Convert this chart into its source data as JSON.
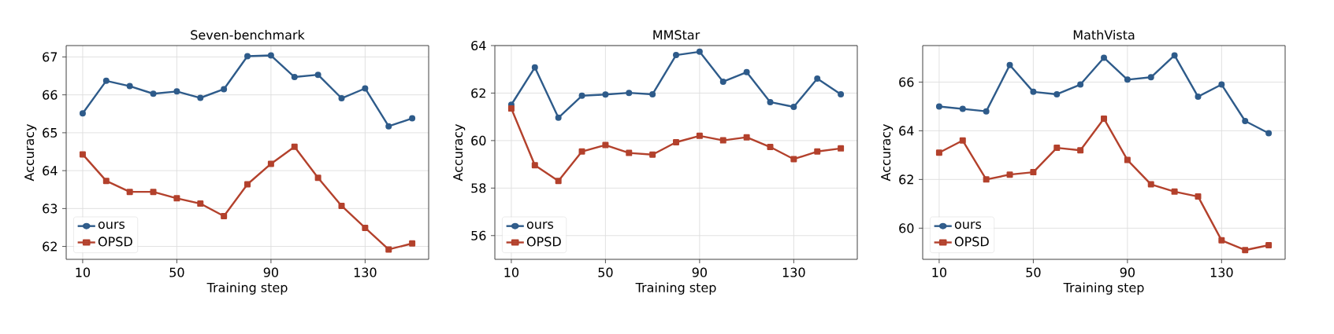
{
  "chart_data": [
    {
      "type": "line",
      "title": "Seven-benchmark",
      "xlabel": "Training step",
      "ylabel": "Accuracy",
      "x": [
        10,
        20,
        30,
        40,
        50,
        60,
        70,
        80,
        90,
        100,
        110,
        120,
        130,
        140,
        150
      ],
      "xlim": [
        3,
        157
      ],
      "ylim": [
        61.66,
        67.3
      ],
      "xticks": [
        10,
        50,
        90,
        130
      ],
      "yticks": [
        62,
        63,
        64,
        65,
        66,
        67
      ],
      "grid": true,
      "legend": "bottom left",
      "series": [
        {
          "name": "ours",
          "color": "#2e5b8a",
          "marker": "circle",
          "values": [
            65.51,
            66.37,
            66.23,
            66.03,
            66.09,
            65.92,
            66.15,
            67.02,
            67.04,
            66.47,
            66.53,
            65.91,
            66.17,
            65.17,
            65.38
          ]
        },
        {
          "name": "OPSD",
          "color": "#b3412c",
          "marker": "square",
          "values": [
            64.43,
            63.73,
            63.44,
            63.44,
            63.27,
            63.13,
            62.8,
            63.64,
            64.18,
            64.63,
            63.81,
            63.07,
            62.49,
            61.92,
            62.08
          ]
        }
      ]
    },
    {
      "type": "line",
      "title": "MMStar",
      "xlabel": "Training step",
      "ylabel": "Accuracy",
      "x": [
        10,
        20,
        30,
        40,
        50,
        60,
        70,
        80,
        90,
        100,
        110,
        120,
        130,
        140,
        150
      ],
      "xlim": [
        3,
        157
      ],
      "ylim": [
        55,
        64
      ],
      "xticks": [
        10,
        50,
        90,
        130
      ],
      "yticks": [
        56,
        58,
        60,
        62,
        64
      ],
      "grid": true,
      "legend": "bottom left",
      "series": [
        {
          "name": "ours",
          "color": "#2e5b8a",
          "marker": "circle",
          "values": [
            61.51,
            63.08,
            60.96,
            61.89,
            61.94,
            62.01,
            61.95,
            63.6,
            63.74,
            62.48,
            62.88,
            61.62,
            61.42,
            62.61,
            61.95
          ]
        },
        {
          "name": "OPSD",
          "color": "#b3412c",
          "marker": "square",
          "values": [
            61.35,
            58.96,
            58.3,
            59.54,
            59.81,
            59.48,
            59.41,
            59.93,
            60.2,
            60.01,
            60.14,
            59.73,
            59.22,
            59.54,
            59.67
          ]
        }
      ]
    },
    {
      "type": "line",
      "title": "MathVista",
      "xlabel": "Training step",
      "ylabel": "Accuracy",
      "x": [
        10,
        20,
        30,
        40,
        50,
        60,
        70,
        80,
        90,
        100,
        110,
        120,
        130,
        140,
        150
      ],
      "xlim": [
        3,
        157
      ],
      "ylim": [
        58.72,
        67.5
      ],
      "xticks": [
        10,
        50,
        90,
        130
      ],
      "yticks": [
        60,
        62,
        64,
        66
      ],
      "grid": true,
      "legend": "bottom left",
      "series": [
        {
          "name": "ours",
          "color": "#2e5b8a",
          "marker": "circle",
          "values": [
            65.0,
            64.9,
            64.8,
            66.7,
            65.6,
            65.5,
            65.9,
            67.0,
            66.1,
            66.2,
            67.1,
            65.4,
            65.9,
            64.4,
            63.9
          ]
        },
        {
          "name": "OPSD",
          "color": "#b3412c",
          "marker": "square",
          "values": [
            63.1,
            63.6,
            62.0,
            62.2,
            62.3,
            63.3,
            63.2,
            64.5,
            62.8,
            61.8,
            61.5,
            61.3,
            59.5,
            59.1,
            59.3
          ]
        }
      ]
    }
  ]
}
